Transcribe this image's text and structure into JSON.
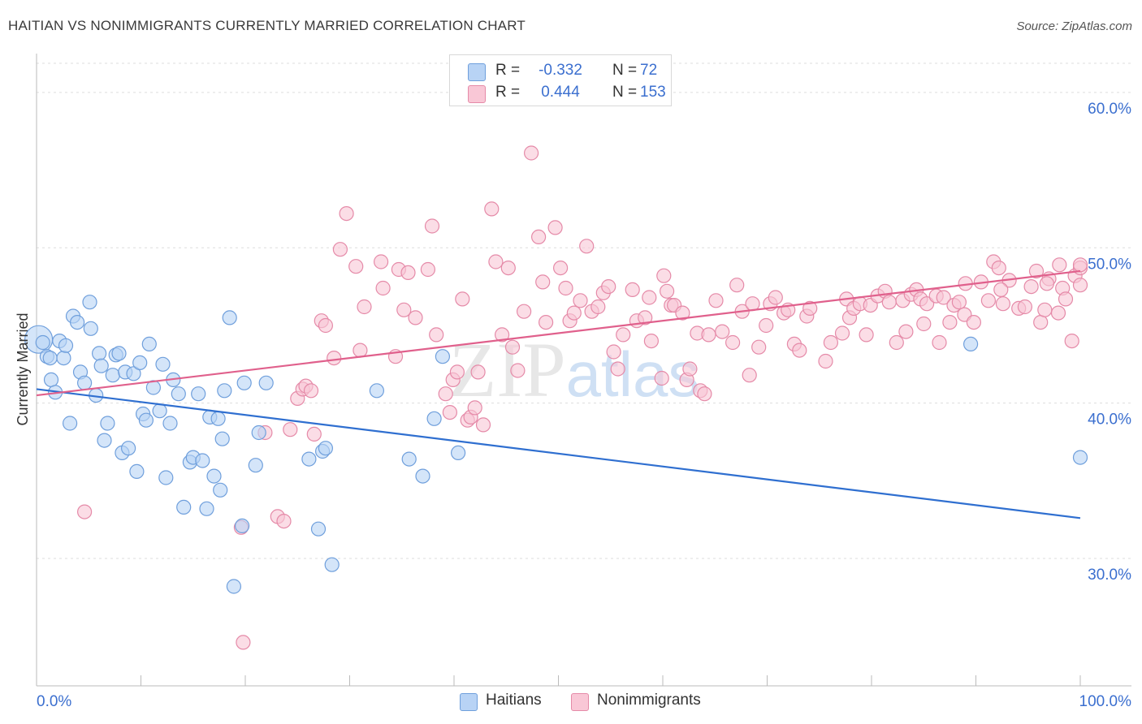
{
  "colors": {
    "blue_fill": "#b8d3f5",
    "blue_stroke": "#6f9fdc",
    "blue_line": "#2f6fd0",
    "pink_fill": "#f9c7d6",
    "pink_stroke": "#e58aa8",
    "pink_line": "#e0608c",
    "axis_label": "#3b6fcf",
    "grid": "#dddddd"
  },
  "chart_data": {
    "type": "scatter",
    "title": "HAITIAN VS NONIMMIGRANTS CURRENTLY MARRIED CORRELATION CHART",
    "source": "Source: ZipAtlas.com",
    "watermark": "ZIPatlas",
    "ylabel": "Currently Married",
    "xlabel": "",
    "xlim": [
      0,
      100
    ],
    "ylim": [
      21.8,
      62.5
    ],
    "x_tick_labels": [
      "0.0%",
      "100.0%"
    ],
    "y_ticks": [
      30,
      40,
      50,
      60
    ],
    "y_tick_labels": [
      "30.0%",
      "40.0%",
      "50.0%",
      "60.0%"
    ],
    "legend": [
      {
        "name": "Haitians",
        "r_label": "R =",
        "r": "-0.332",
        "n_label": "N =",
        "n": "72"
      },
      {
        "name": "Nonimmigrants",
        "r_label": "R =",
        "r": "0.444",
        "n_label": "N =",
        "n": "153"
      }
    ],
    "series": [
      {
        "name": "Haitians",
        "trend": {
          "x0": 0,
          "y0": 40.9,
          "x1": 100,
          "y1": 32.6
        },
        "points": [
          [
            0.2,
            44.1
          ],
          [
            0.6,
            43.9
          ],
          [
            1.0,
            43.0
          ],
          [
            1.3,
            42.9
          ],
          [
            1.4,
            41.5
          ],
          [
            1.8,
            40.7
          ],
          [
            2.2,
            44.0
          ],
          [
            2.6,
            42.9
          ],
          [
            2.8,
            43.7
          ],
          [
            3.2,
            38.7
          ],
          [
            3.5,
            45.6
          ],
          [
            3.9,
            45.2
          ],
          [
            4.2,
            42.0
          ],
          [
            4.6,
            41.3
          ],
          [
            5.1,
            46.5
          ],
          [
            5.2,
            44.8
          ],
          [
            5.7,
            40.5
          ],
          [
            6.0,
            43.2
          ],
          [
            6.2,
            42.4
          ],
          [
            6.5,
            37.6
          ],
          [
            6.8,
            38.7
          ],
          [
            7.3,
            41.8
          ],
          [
            7.6,
            43.1
          ],
          [
            7.9,
            43.2
          ],
          [
            8.2,
            36.8
          ],
          [
            8.5,
            42.0
          ],
          [
            8.8,
            37.1
          ],
          [
            9.3,
            41.9
          ],
          [
            9.6,
            35.6
          ],
          [
            9.9,
            42.6
          ],
          [
            10.2,
            39.3
          ],
          [
            10.5,
            38.9
          ],
          [
            10.8,
            43.8
          ],
          [
            11.2,
            41.0
          ],
          [
            11.8,
            39.5
          ],
          [
            12.1,
            42.5
          ],
          [
            12.4,
            35.2
          ],
          [
            12.8,
            38.7
          ],
          [
            13.1,
            41.5
          ],
          [
            13.6,
            40.6
          ],
          [
            14.1,
            33.3
          ],
          [
            14.7,
            36.2
          ],
          [
            15.0,
            36.5
          ],
          [
            15.5,
            40.6
          ],
          [
            15.9,
            36.3
          ],
          [
            16.3,
            33.2
          ],
          [
            16.6,
            39.1
          ],
          [
            17.0,
            35.3
          ],
          [
            17.4,
            39.0
          ],
          [
            17.6,
            34.4
          ],
          [
            17.8,
            37.7
          ],
          [
            18.0,
            40.8
          ],
          [
            18.5,
            45.5
          ],
          [
            18.9,
            28.2
          ],
          [
            19.7,
            32.1
          ],
          [
            19.9,
            41.3
          ],
          [
            21.0,
            36.0
          ],
          [
            21.3,
            38.1
          ],
          [
            22.0,
            41.3
          ],
          [
            26.1,
            36.4
          ],
          [
            27.0,
            31.9
          ],
          [
            27.4,
            36.9
          ],
          [
            27.7,
            37.1
          ],
          [
            28.3,
            29.6
          ],
          [
            32.6,
            40.8
          ],
          [
            35.7,
            36.4
          ],
          [
            37.0,
            35.3
          ],
          [
            38.1,
            39.0
          ],
          [
            38.9,
            43.0
          ],
          [
            40.4,
            36.8
          ],
          [
            89.5,
            43.8
          ],
          [
            100.0,
            36.5
          ]
        ]
      },
      {
        "name": "Nonimmigrants",
        "trend": {
          "x0": 0,
          "y0": 40.5,
          "x1": 100,
          "y1": 48.5
        },
        "points": [
          [
            4.6,
            33.0
          ],
          [
            19.6,
            32.0
          ],
          [
            19.8,
            24.6
          ],
          [
            21.9,
            38.1
          ],
          [
            23.1,
            32.7
          ],
          [
            23.7,
            32.4
          ],
          [
            24.3,
            38.3
          ],
          [
            25.0,
            40.3
          ],
          [
            25.5,
            40.9
          ],
          [
            25.8,
            41.1
          ],
          [
            26.3,
            40.8
          ],
          [
            26.6,
            38.0
          ],
          [
            27.3,
            45.3
          ],
          [
            27.7,
            45.0
          ],
          [
            28.5,
            42.9
          ],
          [
            29.1,
            49.9
          ],
          [
            29.7,
            52.2
          ],
          [
            30.6,
            48.8
          ],
          [
            31.0,
            43.4
          ],
          [
            31.4,
            46.2
          ],
          [
            33.0,
            49.1
          ],
          [
            33.2,
            47.4
          ],
          [
            34.4,
            43.0
          ],
          [
            34.7,
            48.6
          ],
          [
            35.2,
            46.0
          ],
          [
            35.6,
            48.4
          ],
          [
            36.3,
            45.5
          ],
          [
            37.5,
            48.6
          ],
          [
            37.9,
            51.4
          ],
          [
            38.3,
            44.4
          ],
          [
            39.2,
            40.6
          ],
          [
            39.6,
            39.4
          ],
          [
            39.9,
            41.5
          ],
          [
            40.3,
            42.0
          ],
          [
            40.8,
            46.7
          ],
          [
            41.3,
            38.9
          ],
          [
            41.6,
            39.1
          ],
          [
            42.0,
            39.7
          ],
          [
            42.3,
            42.0
          ],
          [
            42.8,
            38.6
          ],
          [
            43.6,
            52.5
          ],
          [
            44.0,
            49.1
          ],
          [
            44.6,
            44.4
          ],
          [
            45.2,
            48.7
          ],
          [
            45.6,
            43.6
          ],
          [
            46.1,
            42.1
          ],
          [
            46.7,
            45.9
          ],
          [
            47.4,
            56.1
          ],
          [
            48.1,
            50.7
          ],
          [
            48.5,
            47.8
          ],
          [
            48.8,
            45.2
          ],
          [
            49.7,
            51.3
          ],
          [
            50.2,
            48.7
          ],
          [
            50.7,
            47.4
          ],
          [
            51.1,
            45.3
          ],
          [
            51.5,
            45.8
          ],
          [
            52.1,
            46.6
          ],
          [
            52.7,
            50.1
          ],
          [
            53.2,
            45.9
          ],
          [
            53.8,
            46.2
          ],
          [
            54.3,
            47.1
          ],
          [
            54.8,
            47.5
          ],
          [
            55.3,
            43.3
          ],
          [
            55.7,
            42.2
          ],
          [
            56.2,
            44.4
          ],
          [
            57.1,
            47.3
          ],
          [
            57.5,
            45.3
          ],
          [
            58.3,
            45.5
          ],
          [
            58.7,
            46.8
          ],
          [
            58.9,
            44.0
          ],
          [
            59.9,
            41.6
          ],
          [
            60.4,
            47.2
          ],
          [
            60.8,
            46.3
          ],
          [
            61.1,
            46.3
          ],
          [
            61.9,
            45.8
          ],
          [
            62.3,
            41.5
          ],
          [
            62.6,
            42.2
          ],
          [
            63.3,
            44.5
          ],
          [
            63.6,
            40.8
          ],
          [
            64.0,
            40.6
          ],
          [
            64.4,
            44.4
          ],
          [
            65.1,
            46.6
          ],
          [
            65.7,
            44.6
          ],
          [
            66.7,
            43.9
          ],
          [
            67.1,
            47.6
          ],
          [
            67.6,
            45.9
          ],
          [
            68.3,
            41.8
          ],
          [
            68.6,
            46.4
          ],
          [
            69.2,
            43.6
          ],
          [
            69.9,
            45.0
          ],
          [
            70.3,
            46.4
          ],
          [
            70.8,
            46.8
          ],
          [
            71.6,
            45.8
          ],
          [
            72.0,
            46.0
          ],
          [
            72.6,
            43.8
          ],
          [
            73.1,
            43.4
          ],
          [
            73.8,
            45.6
          ],
          [
            74.1,
            46.1
          ],
          [
            75.6,
            42.7
          ],
          [
            76.1,
            43.9
          ],
          [
            77.2,
            44.5
          ],
          [
            77.6,
            46.7
          ],
          [
            77.9,
            45.5
          ],
          [
            78.3,
            46.1
          ],
          [
            78.9,
            46.4
          ],
          [
            79.5,
            44.4
          ],
          [
            79.9,
            46.3
          ],
          [
            80.6,
            46.9
          ],
          [
            81.3,
            47.2
          ],
          [
            81.7,
            46.5
          ],
          [
            82.4,
            43.9
          ],
          [
            83.0,
            46.6
          ],
          [
            83.3,
            44.6
          ],
          [
            83.8,
            47.0
          ],
          [
            84.3,
            47.3
          ],
          [
            84.7,
            46.7
          ],
          [
            85.0,
            45.1
          ],
          [
            85.3,
            46.4
          ],
          [
            86.2,
            46.9
          ],
          [
            86.5,
            43.9
          ],
          [
            86.9,
            46.8
          ],
          [
            87.5,
            45.2
          ],
          [
            87.9,
            46.3
          ],
          [
            88.4,
            46.5
          ],
          [
            88.9,
            45.7
          ],
          [
            89.0,
            47.7
          ],
          [
            89.8,
            45.2
          ],
          [
            90.5,
            47.8
          ],
          [
            91.2,
            46.6
          ],
          [
            91.7,
            49.1
          ],
          [
            92.2,
            48.7
          ],
          [
            92.6,
            46.4
          ],
          [
            93.2,
            47.9
          ],
          [
            94.1,
            46.1
          ],
          [
            94.7,
            46.2
          ],
          [
            95.3,
            47.5
          ],
          [
            95.8,
            48.5
          ],
          [
            96.2,
            45.2
          ],
          [
            96.6,
            46.0
          ],
          [
            97.0,
            48.0
          ],
          [
            97.9,
            45.8
          ],
          [
            98.3,
            47.4
          ],
          [
            98.6,
            46.7
          ],
          [
            99.2,
            44.0
          ],
          [
            99.5,
            48.2
          ],
          [
            100.0,
            48.7
          ],
          [
            100.0,
            47.6
          ],
          [
            100.0,
            48.9
          ],
          [
            98.0,
            48.9
          ],
          [
            96.8,
            47.7
          ],
          [
            92.4,
            47.3
          ],
          [
            60.1,
            48.2
          ]
        ]
      }
    ]
  }
}
